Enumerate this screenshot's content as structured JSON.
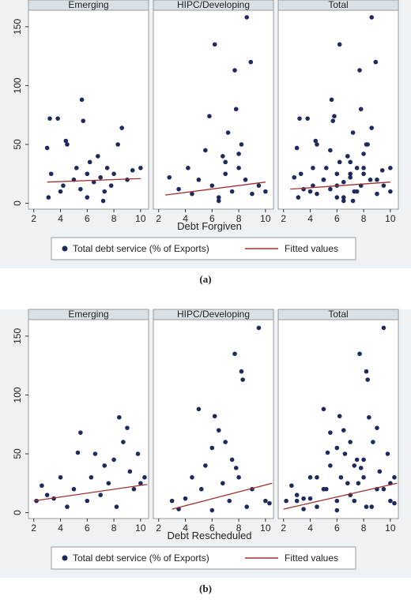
{
  "chart_data": [
    {
      "type": "scatter",
      "xlabel": "Debt Forgiven",
      "caption": "(a)",
      "xlim": [
        1.6,
        10.6
      ],
      "xticks": [
        2,
        4,
        6,
        8,
        10
      ],
      "ylim": [
        -5,
        164
      ],
      "yticks": [
        0,
        50,
        100,
        150
      ],
      "panels": [
        {
          "title": "Emerging",
          "series": [
            {
              "name": "Total debt service (% of Exports)",
              "color": "#1f2a5c",
              "x": [
                3,
                3.2,
                3.3,
                3.8,
                4,
                4.2,
                4.4,
                4.5,
                5,
                5.2,
                5.5,
                5.6,
                5.7,
                6,
                6.2,
                6.5,
                6.8,
                7,
                7.3,
                7.5,
                7.8,
                8,
                8.3,
                8.6,
                9,
                9.4,
                10,
                3.1,
                6,
                7.2
              ],
              "values": [
                47,
                72,
                25,
                72,
                10,
                15,
                53,
                50,
                20,
                30,
                12,
                88,
                70,
                25,
                35,
                18,
                40,
                22,
                10,
                30,
                15,
                25,
                50,
                64,
                20,
                28,
                30,
                5,
                5,
                2
              ]
            },
            {
              "name": "Fitted values",
              "color": "#a03030",
              "x": [
                3,
                10
              ],
              "values": [
                18,
                21
              ]
            }
          ]
        },
        {
          "title": "HIPC/Developing",
          "series": [
            {
              "name": "Total debt service (% of Exports)",
              "color": "#1f2a5c",
              "x": [
                2.8,
                3.5,
                4.2,
                4.5,
                5,
                5.5,
                5.8,
                6,
                6.2,
                6.5,
                6.8,
                7,
                7.2,
                7.5,
                7.7,
                7.8,
                8,
                8.2,
                8.5,
                8.6,
                8.9,
                9,
                9.5,
                10,
                6.5,
                7,
                8
              ],
              "values": [
                22,
                12,
                30,
                8,
                20,
                45,
                74,
                15,
                135,
                5,
                40,
                25,
                60,
                10,
                113,
                80,
                30,
                50,
                20,
                158,
                120,
                8,
                15,
                10,
                2,
                35,
                42
              ]
            },
            {
              "name": "Fitted values",
              "color": "#a03030",
              "x": [
                2.5,
                10
              ],
              "values": [
                7,
                18
              ]
            }
          ]
        },
        {
          "title": "Total",
          "series": [
            {
              "name": "Total debt service (% of Exports)",
              "color": "#1f2a5c",
              "x": [
                3,
                3.2,
                3.3,
                3.8,
                4,
                4.2,
                4.4,
                4.5,
                5,
                5.2,
                5.5,
                5.6,
                5.7,
                6,
                6.2,
                6.5,
                6.8,
                7,
                7.3,
                7.5,
                7.8,
                8,
                8.3,
                8.6,
                9,
                9.4,
                10,
                3.1,
                6,
                7.2,
                2.8,
                3.5,
                4.2,
                4.5,
                5,
                5.5,
                5.8,
                6,
                6.2,
                6.5,
                6.8,
                7,
                7.2,
                7.5,
                7.7,
                7.8,
                8,
                8.2,
                8.5,
                8.6,
                8.9,
                9,
                9.5,
                10,
                6.5,
                7,
                8
              ],
              "values": [
                47,
                72,
                25,
                72,
                10,
                15,
                53,
                50,
                20,
                30,
                12,
                88,
                70,
                25,
                35,
                18,
                40,
                22,
                10,
                30,
                15,
                25,
                50,
                64,
                20,
                28,
                30,
                5,
                5,
                2,
                22,
                12,
                30,
                8,
                20,
                45,
                74,
                15,
                135,
                5,
                40,
                25,
                60,
                10,
                113,
                80,
                30,
                50,
                20,
                158,
                120,
                8,
                15,
                10,
                2,
                35,
                42
              ]
            },
            {
              "name": "Fitted values",
              "color": "#a03030",
              "x": [
                2.5,
                10
              ],
              "values": [
                12,
                18
              ]
            }
          ]
        }
      ]
    },
    {
      "type": "scatter",
      "xlabel": "Debt Rescheduled",
      "caption": "(b)",
      "xlim": [
        1.6,
        10.6
      ],
      "xticks": [
        2,
        4,
        6,
        8,
        10
      ],
      "ylim": [
        -5,
        164
      ],
      "yticks": [
        0,
        50,
        100,
        150
      ],
      "panels": [
        {
          "title": "Emerging",
          "series": [
            {
              "name": "Total debt service (% of Exports)",
              "color": "#1f2a5c",
              "x": [
                2.2,
                2.6,
                3,
                3.5,
                4,
                4.5,
                5,
                5.3,
                5.5,
                6,
                6.3,
                6.6,
                7,
                7.3,
                7.6,
                8,
                8.4,
                8.7,
                9,
                9.2,
                9.5,
                9.8,
                10,
                10.3,
                8.2
              ],
              "values": [
                10,
                23,
                15,
                12,
                30,
                5,
                20,
                51,
                68,
                10,
                30,
                50,
                15,
                40,
                25,
                45,
                81,
                60,
                72,
                35,
                20,
                50,
                25,
                30,
                5
              ]
            },
            {
              "name": "Fitted values",
              "color": "#a03030",
              "x": [
                2,
                10.5
              ],
              "values": [
                10,
                24
              ]
            }
          ]
        },
        {
          "title": "HIPC/Developing",
          "series": [
            {
              "name": "Total debt service (% of Exports)",
              "color": "#1f2a5c",
              "x": [
                3,
                3.5,
                4,
                4.5,
                5,
                5.2,
                5.5,
                6,
                6.2,
                6.5,
                6.8,
                7,
                7.3,
                7.5,
                7.7,
                8,
                8.2,
                8.3,
                8.6,
                9,
                9.5,
                10,
                10.3,
                7.8,
                6
              ],
              "values": [
                10,
                3,
                12,
                30,
                88,
                20,
                40,
                55,
                82,
                70,
                25,
                60,
                10,
                45,
                135,
                30,
                120,
                113,
                5,
                20,
                157,
                10,
                8,
                38,
                2
              ]
            },
            {
              "name": "Fitted values",
              "color": "#a03030",
              "x": [
                3,
                10.5
              ],
              "values": [
                3,
                25
              ]
            }
          ]
        },
        {
          "title": "Total",
          "series": [
            {
              "name": "Total debt service (% of Exports)",
              "color": "#1f2a5c",
              "x": [
                2.2,
                2.6,
                3,
                3.5,
                4,
                4.5,
                5,
                5.3,
                5.5,
                6,
                6.3,
                6.6,
                7,
                7.3,
                7.6,
                8,
                8.4,
                8.7,
                9,
                9.2,
                9.5,
                9.8,
                10,
                10.3,
                8.2,
                3,
                3.5,
                4,
                4.5,
                5,
                5.2,
                5.5,
                6,
                6.2,
                6.5,
                6.8,
                7,
                7.3,
                7.5,
                7.7,
                8,
                8.2,
                8.3,
                8.6,
                9,
                9.5,
                10,
                10.3,
                7.8,
                6
              ],
              "values": [
                10,
                23,
                15,
                12,
                30,
                5,
                20,
                51,
                68,
                10,
                30,
                50,
                15,
                40,
                25,
                45,
                81,
                60,
                72,
                35,
                20,
                50,
                25,
                30,
                5,
                10,
                3,
                12,
                30,
                88,
                20,
                40,
                55,
                82,
                70,
                25,
                60,
                10,
                45,
                135,
                30,
                120,
                113,
                5,
                20,
                157,
                10,
                8,
                38,
                2
              ]
            },
            {
              "name": "Fitted values",
              "color": "#a03030",
              "x": [
                2,
                10.5
              ],
              "values": [
                3,
                25
              ]
            }
          ]
        }
      ]
    }
  ]
}
